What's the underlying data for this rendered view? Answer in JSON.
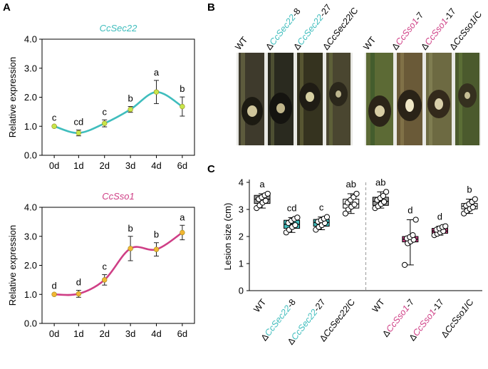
{
  "panel_letters": {
    "a": "A",
    "b": "B",
    "c": "C"
  },
  "colors": {
    "sec22": "#3fbdbd",
    "sso1": "#cf3f86",
    "point_a": "#c6e64a",
    "point_b": "#f2b632",
    "wt_box": "#9a9a9a",
    "comp_box": "#ffffff",
    "sep": "#999999"
  },
  "photos": {
    "left_labels": [
      {
        "prefix": "",
        "gene": "",
        "suffix": "WT",
        "colored": false
      },
      {
        "prefix": "Δ",
        "gene": "CcSec22",
        "suffix": "-8",
        "colored": true
      },
      {
        "prefix": "Δ",
        "gene": "CcSec22",
        "suffix": "-27",
        "colored": true
      },
      {
        "prefix": "Δ",
        "gene": "CcSec22",
        "suffix": "/C",
        "colored": false
      }
    ],
    "right_labels": [
      {
        "prefix": "",
        "gene": "",
        "suffix": "WT",
        "colored": false
      },
      {
        "prefix": "Δ",
        "gene": "CcSso1",
        "suffix": "-7",
        "colored": true
      },
      {
        "prefix": "Δ",
        "gene": "CcSso1",
        "suffix": "-17",
        "colored": true
      },
      {
        "prefix": "Δ",
        "gene": "CcSso1",
        "suffix": "/C",
        "colored": false
      }
    ]
  },
  "chart_data": [
    {
      "type": "line",
      "title": "CcSec22",
      "ylabel": "Relative expression",
      "xlabel": "",
      "categories": [
        "0d",
        "1d",
        "2d",
        "3d",
        "4d",
        "6d"
      ],
      "values": [
        1.0,
        0.77,
        1.1,
        1.58,
        2.18,
        1.68
      ],
      "errors": [
        0.02,
        0.1,
        0.12,
        0.1,
        0.4,
        0.33
      ],
      "letters": [
        "c",
        "cd",
        "c",
        "b",
        "a",
        "b"
      ],
      "ylim": [
        0,
        4
      ],
      "yticks": [
        "0.0",
        "1.0",
        "2.0",
        "3.0",
        "4.0"
      ]
    },
    {
      "type": "line",
      "title": "CcSso1",
      "ylabel": "Relative expression",
      "xlabel": "",
      "categories": [
        "0d",
        "1d",
        "2d",
        "3d",
        "4d",
        "6d"
      ],
      "values": [
        1.0,
        1.02,
        1.5,
        2.58,
        2.55,
        3.13
      ],
      "errors": [
        0.02,
        0.12,
        0.18,
        0.42,
        0.23,
        0.25
      ],
      "letters": [
        "d",
        "d",
        "c",
        "b",
        "b",
        "a"
      ],
      "ylim": [
        0,
        4
      ],
      "yticks": [
        "0.0",
        "1.0",
        "2.0",
        "3.0",
        "4.0"
      ]
    },
    {
      "type": "box",
      "ylabel": "Lesion size (cm)",
      "ylim": [
        0,
        4
      ],
      "yticks": [
        "0",
        "1",
        "2",
        "3",
        "4"
      ],
      "groups": [
        {
          "prefix": "",
          "gene": "",
          "suffix": "WT",
          "colored": false,
          "fill": "wt",
          "letter": "a",
          "min": 3.05,
          "q1": 3.22,
          "median": 3.38,
          "q3": 3.52,
          "max": 3.58,
          "points": [
            3.05,
            3.15,
            3.25,
            3.32,
            3.38,
            3.45,
            3.52,
            3.58
          ]
        },
        {
          "prefix": "Δ",
          "gene": "CcSec22",
          "suffix": "-8",
          "colored": true,
          "fill": "sec22",
          "letter": "cd",
          "min": 2.15,
          "q1": 2.3,
          "median": 2.45,
          "q3": 2.6,
          "max": 2.7,
          "points": [
            2.15,
            2.25,
            2.35,
            2.42,
            2.5,
            2.58,
            2.65,
            2.7
          ]
        },
        {
          "prefix": "Δ",
          "gene": "CcSec22",
          "suffix": "-27",
          "colored": true,
          "fill": "sec22",
          "letter": "c",
          "min": 2.25,
          "q1": 2.38,
          "median": 2.52,
          "q3": 2.63,
          "max": 2.72,
          "points": [
            2.25,
            2.35,
            2.42,
            2.5,
            2.55,
            2.6,
            2.66,
            2.72
          ]
        },
        {
          "prefix": "Δ",
          "gene": "CcSec22",
          "suffix": "/C",
          "colored": false,
          "fill": "comp",
          "letter": "ab",
          "min": 2.85,
          "q1": 3.05,
          "median": 3.2,
          "q3": 3.38,
          "max": 3.58,
          "points": [
            2.85,
            3.0,
            3.1,
            3.18,
            3.25,
            3.35,
            3.45,
            3.58
          ]
        },
        {
          "prefix": "",
          "gene": "",
          "suffix": "WT",
          "colored": false,
          "fill": "wt",
          "letter": "ab",
          "min": 3.05,
          "q1": 3.15,
          "median": 3.3,
          "q3": 3.45,
          "max": 3.65,
          "points": [
            3.05,
            3.12,
            3.2,
            3.28,
            3.35,
            3.42,
            3.5,
            3.65
          ]
        },
        {
          "prefix": "Δ",
          "gene": "CcSso1",
          "suffix": "-7",
          "colored": true,
          "fill": "sso1",
          "letter": "d",
          "min": 0.95,
          "q1": 1.8,
          "median": 1.9,
          "q3": 2.0,
          "max": 2.62,
          "points": [
            0.95,
            1.75,
            1.82,
            1.88,
            1.93,
            1.98,
            2.05,
            2.62
          ]
        },
        {
          "prefix": "Δ",
          "gene": "CcSso1",
          "suffix": "-17",
          "colored": true,
          "fill": "sso1",
          "letter": "d",
          "min": 2.05,
          "q1": 2.12,
          "median": 2.2,
          "q3": 2.3,
          "max": 2.38,
          "points": [
            2.05,
            2.1,
            2.15,
            2.2,
            2.25,
            2.3,
            2.35,
            2.38
          ]
        },
        {
          "prefix": "Δ",
          "gene": "CcSso1",
          "suffix": "/C",
          "colored": false,
          "fill": "comp",
          "letter": "b",
          "min": 2.85,
          "q1": 3.02,
          "median": 3.12,
          "q3": 3.22,
          "max": 3.38,
          "points": [
            2.85,
            2.95,
            3.02,
            3.08,
            3.14,
            3.2,
            3.28,
            3.38
          ]
        }
      ]
    }
  ]
}
